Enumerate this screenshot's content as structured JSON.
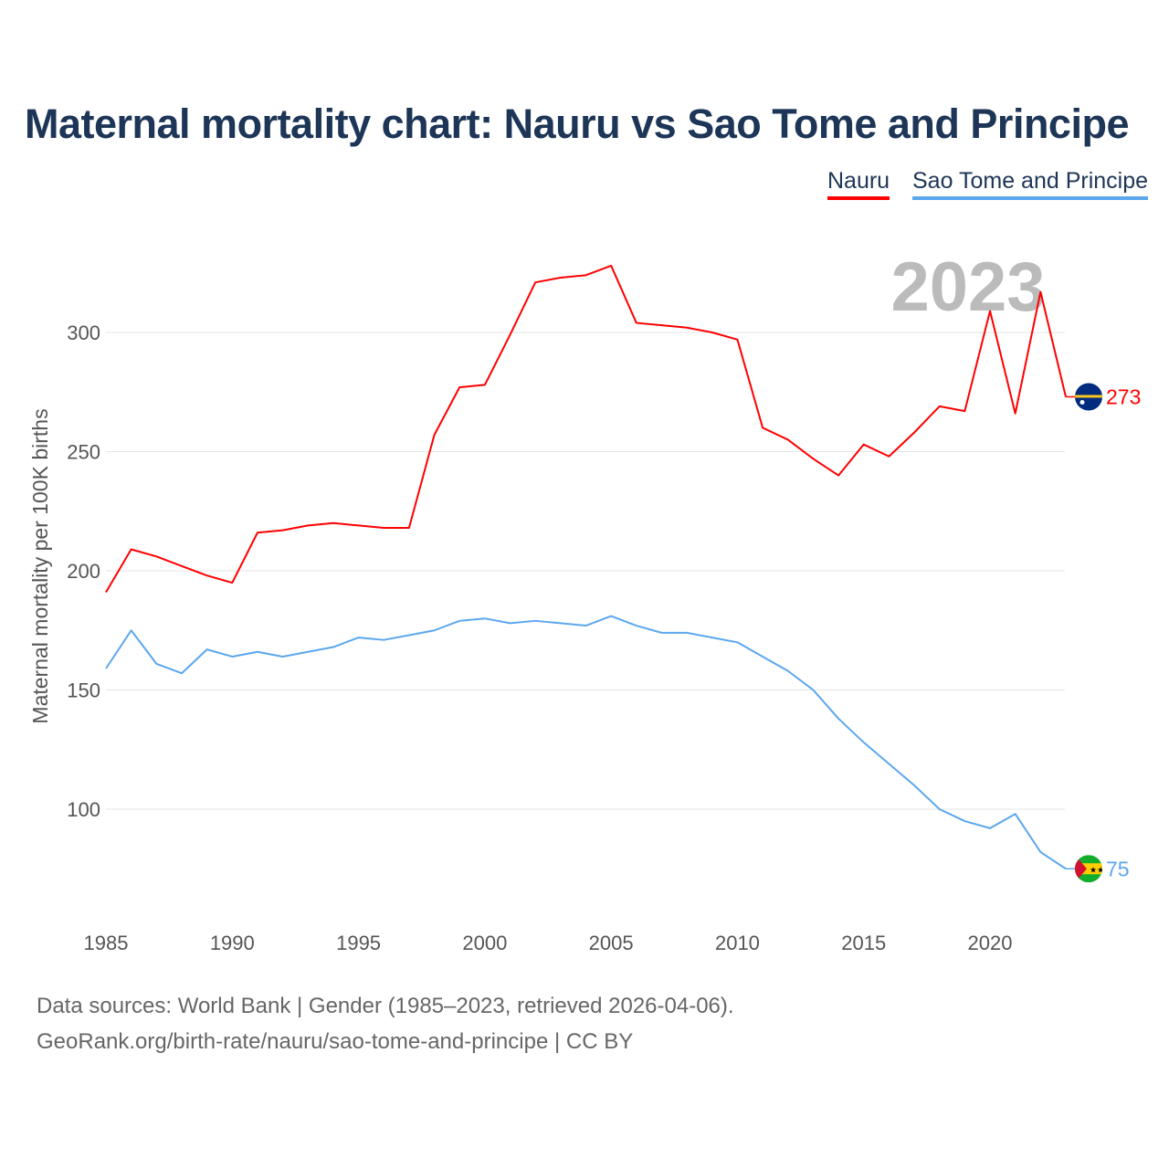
{
  "title": "Maternal mortality chart: Nauru vs Sao Tome and Principe",
  "legend": [
    {
      "label": "Nauru",
      "color": "#ff0000"
    },
    {
      "label": "Sao Tome and Principe",
      "color": "#5ba7ee"
    }
  ],
  "year_watermark": "2023",
  "footer": {
    "line1": "Data sources: World Bank | Gender (1985–2023, retrieved 2026-04-06).",
    "line2": "GeoRank.org/birth-rate/nauru/sao-tome-and-principe | CC BY"
  },
  "chart_data": {
    "type": "line",
    "title": "Maternal mortality chart: Nauru vs Sao Tome and Principe",
    "xlabel": "",
    "ylabel": "Maternal mortality per 100K births",
    "xlim": [
      1985,
      2023
    ],
    "ylim": [
      60,
      340
    ],
    "xticks": [
      "1985",
      "1990",
      "1995",
      "2000",
      "2005",
      "2010",
      "2015",
      "2020"
    ],
    "yticks": [
      "100",
      "150",
      "200",
      "250",
      "300"
    ],
    "grid": true,
    "legend_position": "top-right",
    "x": [
      1985,
      1986,
      1987,
      1988,
      1989,
      1990,
      1991,
      1992,
      1993,
      1994,
      1995,
      1996,
      1997,
      1998,
      1999,
      2000,
      2001,
      2002,
      2003,
      2004,
      2005,
      2006,
      2007,
      2008,
      2009,
      2010,
      2011,
      2012,
      2013,
      2014,
      2015,
      2016,
      2017,
      2018,
      2019,
      2020,
      2021,
      2022,
      2023
    ],
    "series": [
      {
        "name": "Nauru",
        "color": "#ff0000",
        "end_label": "273",
        "flag": "nauru-flag",
        "values": [
          191,
          209,
          206,
          202,
          198,
          195,
          216,
          217,
          219,
          220,
          219,
          218,
          218,
          257,
          277,
          278,
          299,
          321,
          323,
          324,
          328,
          304,
          303,
          302,
          300,
          297,
          260,
          255,
          247,
          240,
          253,
          248,
          258,
          269,
          267,
          309,
          266,
          317,
          273
        ]
      },
      {
        "name": "Sao Tome and Principe",
        "color": "#5ba7ee",
        "end_label": "75",
        "flag": "sao-tome-flag",
        "values": [
          159,
          175,
          161,
          157,
          167,
          164,
          166,
          164,
          166,
          168,
          172,
          171,
          173,
          175,
          179,
          180,
          178,
          179,
          178,
          177,
          181,
          177,
          174,
          174,
          172,
          170,
          164,
          158,
          150,
          138,
          128,
          119,
          110,
          100,
          95,
          92,
          98,
          82,
          75
        ]
      }
    ]
  }
}
